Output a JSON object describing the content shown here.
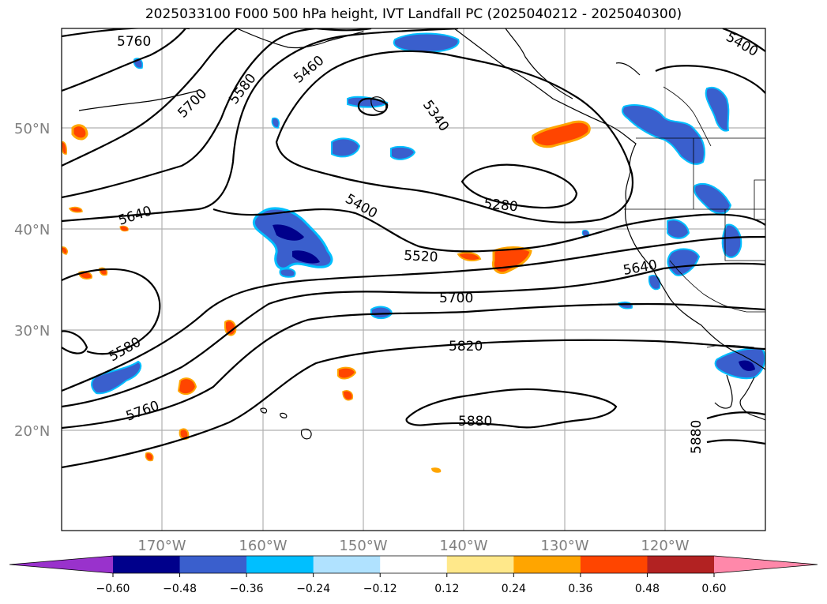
{
  "title": "2025033100 F000 500 hPa height, IVT Landfall PC (2025040212 - 2025040300)",
  "lat_labels": [
    "50°N",
    "40°N",
    "30°N",
    "20°N"
  ],
  "lon_labels": [
    "170°W",
    "160°W",
    "150°W",
    "140°W",
    "130°W",
    "120°W"
  ],
  "contour_labels": [
    "5760",
    "5700",
    "5580",
    "5460",
    "5400",
    "5340",
    "5640",
    "5400",
    "5280",
    "5520",
    "5640",
    "5700",
    "5580",
    "5820",
    "5760",
    "5880",
    "5880"
  ],
  "colorbar": {
    "ticks": [
      "−0.60",
      "−0.48",
      "−0.36",
      "−0.24",
      "−0.12",
      "0.12",
      "0.24",
      "0.36",
      "0.48",
      "0.60"
    ],
    "colors": [
      "#9932cc",
      "#00008b",
      "#3a5fcd",
      "#00bfff",
      "#b0e2ff",
      "#ffffff",
      "#ffe88a",
      "#ffa500",
      "#ff4500",
      "#b22222",
      "#ff88aa"
    ]
  }
}
